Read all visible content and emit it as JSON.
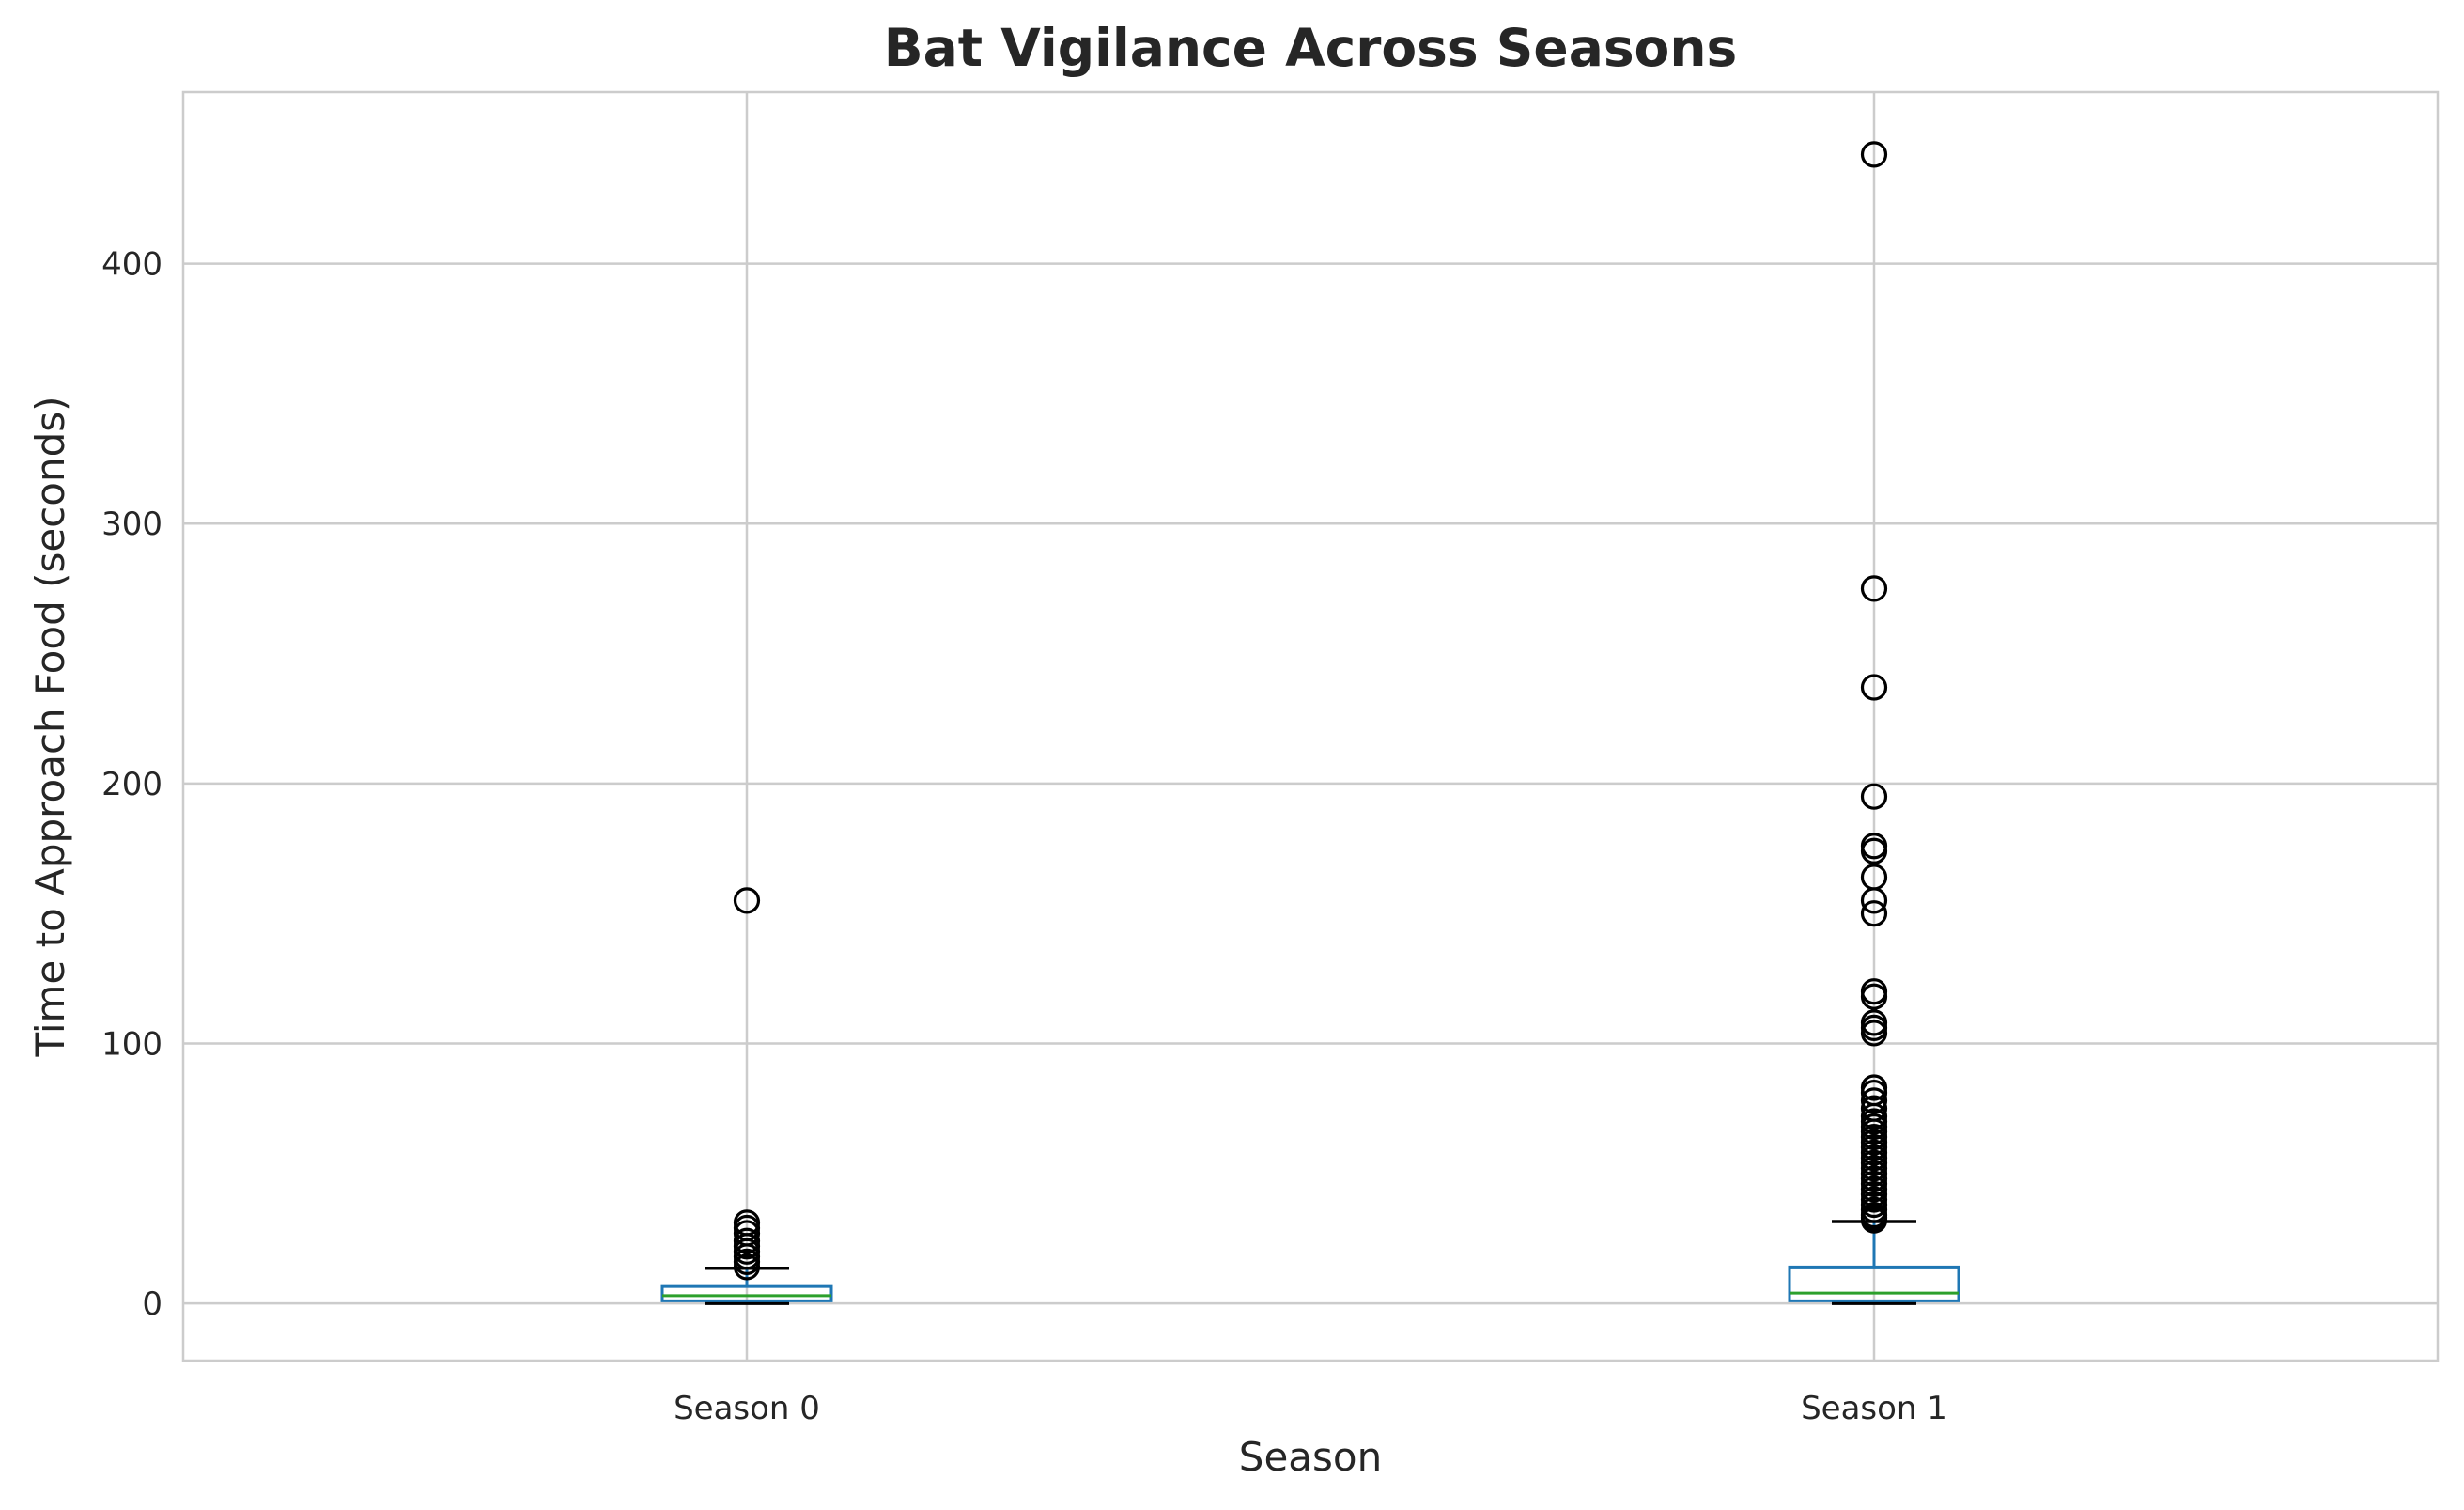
{
  "chart_data": {
    "type": "box",
    "title": "Bat Vigilance Across Seasons",
    "xlabel": "Season",
    "ylabel": "Time to Approach Food (seconds)",
    "categories": [
      "Season 0",
      "Season 1"
    ],
    "ylim": [
      -22,
      466
    ],
    "yticks": [
      0,
      100,
      200,
      300,
      400
    ],
    "ytick_labels": [
      "0",
      "100",
      "200",
      "300",
      "400"
    ],
    "grid": true,
    "boxes": [
      {
        "name": "Season 0",
        "whisker_low": 0,
        "q1": 1,
        "median": 3,
        "q3": 6.5,
        "whisker_high": 13.5,
        "outliers": [
          155,
          31,
          29,
          27,
          24,
          22,
          20,
          18,
          16,
          14
        ]
      },
      {
        "name": "Season 1",
        "whisker_low": 0,
        "q1": 1,
        "median": 4,
        "q3": 14,
        "whisker_high": 31.5,
        "outliers": [
          442,
          275,
          237,
          195,
          176,
          174,
          164,
          155,
          150,
          120,
          118,
          108,
          106,
          104,
          83,
          81,
          78,
          75,
          72,
          70,
          68,
          66,
          64,
          62,
          60,
          58,
          56,
          54,
          52,
          50,
          48,
          46,
          44,
          42,
          40,
          38,
          36,
          34,
          33,
          32
        ]
      }
    ],
    "colors": {
      "box": "#1f77b4",
      "median": "#2ca02c",
      "whisker": "#1f77b4",
      "cap": "#000000",
      "flier": "#000000",
      "grid": "#cccccc",
      "text": "#262626"
    }
  }
}
